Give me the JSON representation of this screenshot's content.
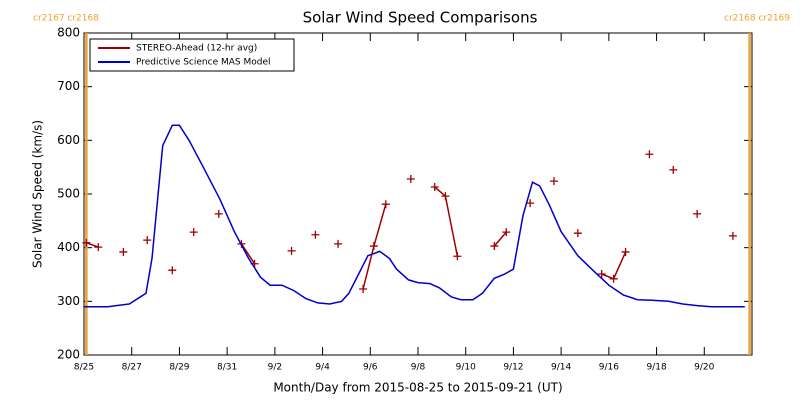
{
  "chart_data": {
    "type": "line",
    "title": "Solar Wind Speed Comparisons",
    "xlabel": "Month/Day from 2015-08-25 to 2015-09-21 (UT)",
    "ylabel": "Solar Wind Speed (km/s)",
    "xlim": [
      0,
      28
    ],
    "ylim": [
      200,
      800
    ],
    "xticks": [
      {
        "value": 0,
        "label": "8/25"
      },
      {
        "value": 2,
        "label": "8/27"
      },
      {
        "value": 4,
        "label": "8/29"
      },
      {
        "value": 6,
        "label": "8/31"
      },
      {
        "value": 8,
        "label": "9/2"
      },
      {
        "value": 10,
        "label": "9/4"
      },
      {
        "value": 12,
        "label": "9/6"
      },
      {
        "value": 14,
        "label": "9/8"
      },
      {
        "value": 16,
        "label": "9/10"
      },
      {
        "value": 18,
        "label": "9/12"
      },
      {
        "value": 20,
        "label": "9/14"
      },
      {
        "value": 22,
        "label": "9/16"
      },
      {
        "value": 24,
        "label": "9/18"
      },
      {
        "value": 26,
        "label": "9/20"
      }
    ],
    "yticks": [
      200,
      300,
      400,
      500,
      600,
      700,
      800
    ],
    "legend": "upper left",
    "annotations": [
      {
        "text": "cr2167 cr2168",
        "x": 0.1,
        "color": "#f0a030"
      },
      {
        "text": "cr2168 cr2169",
        "x": 27.9,
        "color": "#f0a030"
      }
    ],
    "series": [
      {
        "name": "STEREO-Ahead (12-hr avg)",
        "color": "#a00000",
        "markers": true,
        "x": [
          0.1,
          0.6,
          null,
          1.65,
          null,
          2.65,
          null,
          3.7,
          null,
          4.6,
          null,
          5.65,
          null,
          6.6,
          7.15,
          null,
          8.7,
          null,
          9.7,
          null,
          10.65,
          null,
          11.7,
          12.15,
          12.65,
          null,
          13.7,
          null,
          14.7,
          15.15,
          15.65,
          null,
          17.2,
          17.7,
          null,
          18.7,
          null,
          19.7,
          null,
          20.7,
          null,
          21.7,
          22.2,
          22.7,
          null,
          23.7,
          null,
          24.7,
          null,
          25.7,
          null,
          27.2
        ],
        "values": [
          409,
          401,
          null,
          392,
          null,
          414,
          null,
          358,
          null,
          429,
          null,
          463,
          null,
          407,
          370,
          null,
          394,
          null,
          424,
          null,
          407,
          null,
          323,
          403,
          481,
          null,
          528,
          null,
          513,
          496,
          384,
          null,
          403,
          429,
          null,
          483,
          null,
          524,
          null,
          427,
          null,
          351,
          342,
          392,
          null,
          574,
          null,
          545,
          null,
          463,
          null,
          422
        ]
      },
      {
        "name": "Predictive Science MAS Model",
        "color": "#0000cc",
        "markers": false,
        "x": [
          0,
          1,
          1.9,
          2.6,
          2.85,
          3.3,
          3.7,
          4.0,
          4.4,
          5.0,
          5.7,
          6.3,
          6.9,
          7.4,
          7.8,
          8.3,
          8.8,
          9.3,
          9.8,
          10.3,
          10.8,
          11.1,
          11.5,
          11.9,
          12.4,
          12.8,
          13.1,
          13.6,
          14.0,
          14.5,
          14.9,
          15.4,
          15.8,
          16.3,
          16.7,
          17.2,
          17.6,
          18.0,
          18.4,
          18.8,
          19.1,
          19.5,
          20.0,
          20.7,
          21.4,
          22.0,
          22.6,
          23.2,
          23.8,
          24.5,
          25.1,
          25.7,
          26.3,
          27.7
        ],
        "values": [
          290,
          290,
          295,
          315,
          380,
          590,
          628,
          628,
          600,
          550,
          490,
          430,
          380,
          345,
          330,
          330,
          320,
          305,
          297,
          295,
          300,
          315,
          350,
          385,
          393,
          380,
          360,
          340,
          335,
          333,
          325,
          308,
          303,
          303,
          315,
          343,
          350,
          360,
          460,
          522,
          515,
          480,
          430,
          385,
          355,
          330,
          312,
          303,
          302,
          300,
          295,
          292,
          290,
          290
        ]
      }
    ]
  }
}
